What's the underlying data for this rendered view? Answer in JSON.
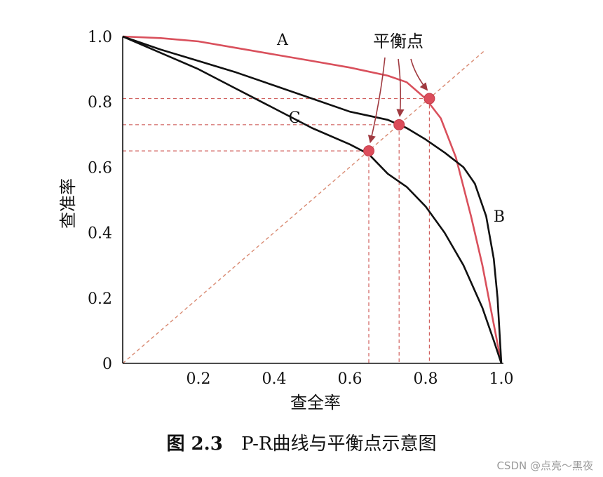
{
  "chart_data": {
    "type": "line",
    "xlabel": "查全率",
    "ylabel": "查准率",
    "xlim": [
      0,
      1
    ],
    "ylim": [
      0,
      1
    ],
    "x_ticks": [
      "0.2",
      "0.4",
      "0.6",
      "0.8",
      "1.0"
    ],
    "y_ticks": [
      "0",
      "0.2",
      "0.4",
      "0.6",
      "0.8",
      "1.0"
    ],
    "grid": false,
    "series": [
      {
        "name": "A",
        "color": "#d9505c",
        "points": [
          [
            0,
            1.0
          ],
          [
            0.1,
            0.995
          ],
          [
            0.2,
            0.985
          ],
          [
            0.3,
            0.965
          ],
          [
            0.4,
            0.945
          ],
          [
            0.5,
            0.925
          ],
          [
            0.6,
            0.905
          ],
          [
            0.7,
            0.88
          ],
          [
            0.75,
            0.86
          ],
          [
            0.8,
            0.81
          ],
          [
            0.84,
            0.75
          ],
          [
            0.88,
            0.63
          ],
          [
            0.92,
            0.45
          ],
          [
            0.95,
            0.3
          ],
          [
            0.98,
            0.12
          ],
          [
            1.0,
            0.0
          ]
        ]
      },
      {
        "name": "B",
        "color": "#111111",
        "points": [
          [
            0,
            1.0
          ],
          [
            0.1,
            0.96
          ],
          [
            0.2,
            0.925
          ],
          [
            0.3,
            0.89
          ],
          [
            0.4,
            0.85
          ],
          [
            0.5,
            0.81
          ],
          [
            0.6,
            0.77
          ],
          [
            0.7,
            0.745
          ],
          [
            0.75,
            0.72
          ],
          [
            0.8,
            0.685
          ],
          [
            0.85,
            0.645
          ],
          [
            0.9,
            0.6
          ],
          [
            0.93,
            0.55
          ],
          [
            0.96,
            0.45
          ],
          [
            0.98,
            0.32
          ],
          [
            0.99,
            0.2
          ],
          [
            1.0,
            0.0
          ]
        ]
      },
      {
        "name": "C",
        "color": "#111111",
        "points": [
          [
            0,
            1.0
          ],
          [
            0.1,
            0.95
          ],
          [
            0.2,
            0.9
          ],
          [
            0.3,
            0.84
          ],
          [
            0.4,
            0.78
          ],
          [
            0.5,
            0.72
          ],
          [
            0.6,
            0.67
          ],
          [
            0.65,
            0.64
          ],
          [
            0.7,
            0.58
          ],
          [
            0.75,
            0.54
          ],
          [
            0.8,
            0.48
          ],
          [
            0.85,
            0.4
          ],
          [
            0.9,
            0.3
          ],
          [
            0.95,
            0.17
          ],
          [
            0.98,
            0.07
          ],
          [
            1.0,
            0.0
          ]
        ]
      }
    ],
    "reference_line": {
      "points": [
        [
          0,
          0
        ],
        [
          1.0,
          1.0
        ]
      ],
      "color": "#d98a72",
      "style": "dashed"
    },
    "break_even_points": [
      {
        "x": 0.65,
        "y": 0.65
      },
      {
        "x": 0.73,
        "y": 0.73
      },
      {
        "x": 0.81,
        "y": 0.81
      }
    ],
    "annotation": "平衡点"
  },
  "caption": {
    "number": "图 2.3",
    "text": "P-R曲线与平衡点示意图"
  },
  "watermark": "CSDN @点亮～黑夜"
}
